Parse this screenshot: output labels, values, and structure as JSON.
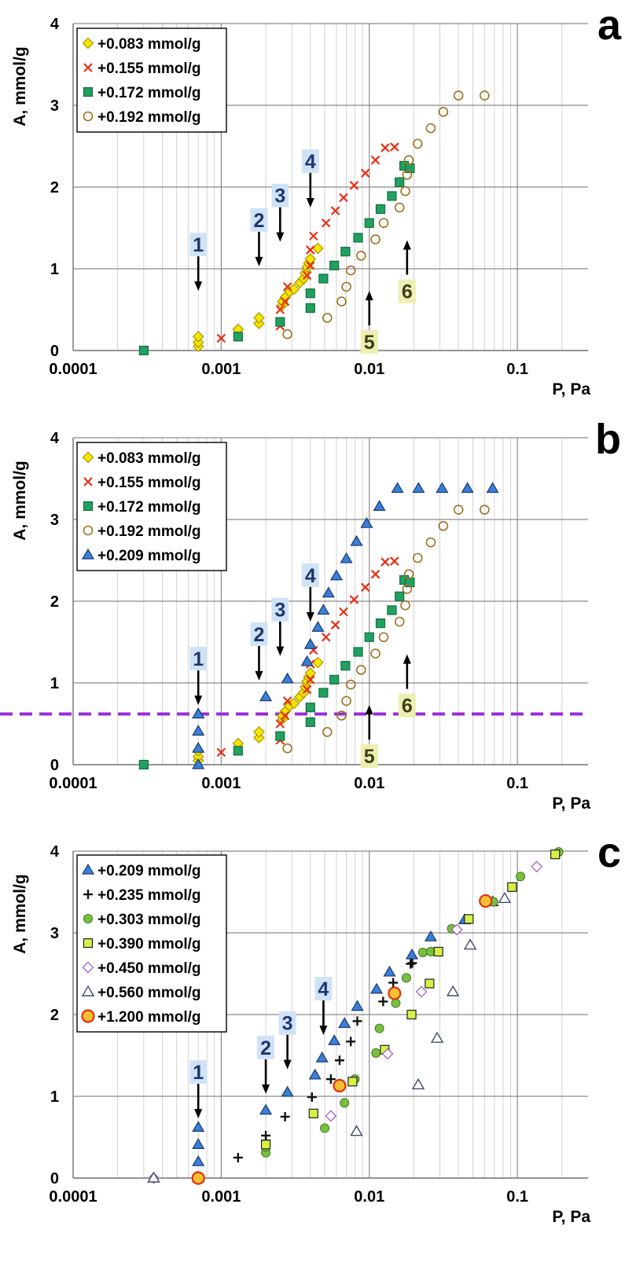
{
  "chart_data": [
    {
      "type": "scatter",
      "panel_label": "a",
      "ylabel": "A, mmol/g",
      "xlabel": "P, Pa",
      "x_scale": "log",
      "xlim": [
        0.0001,
        0.3
      ],
      "ylim": [
        0,
        4
      ],
      "x_ticks": [
        "0.0001",
        "0.001",
        "0.01",
        "0.1"
      ],
      "y_ticks": [
        "0",
        "1",
        "2",
        "3",
        "4"
      ],
      "grid": true,
      "legend_position": "top-left",
      "series": [
        {
          "name": "+0.083 mmol/g",
          "marker": "diamond",
          "color": "#f5e400",
          "edge": "#a89a00",
          "x": [
            0.0007,
            0.0007,
            0.0007,
            0.0013,
            0.0018,
            0.0018,
            0.0026,
            0.0026,
            0.0027,
            0.0029,
            0.0031,
            0.0034,
            0.0036,
            0.0037,
            0.0038,
            0.0039,
            0.004,
            0.0045
          ],
          "y": [
            0.05,
            0.1,
            0.17,
            0.26,
            0.33,
            0.4,
            0.56,
            0.6,
            0.65,
            0.72,
            0.75,
            0.83,
            0.88,
            0.95,
            1.02,
            1.07,
            1.12,
            1.25
          ]
        },
        {
          "name": "+0.155 mmol/g",
          "marker": "x",
          "color": "#e83018",
          "edge": "#e83018",
          "x": [
            0.0003,
            0.001,
            0.0025,
            0.0025,
            0.0027,
            0.0028,
            0.0038,
            0.004,
            0.004,
            0.0042,
            0.0051,
            0.0059,
            0.0067,
            0.0079,
            0.0094,
            0.011,
            0.0128,
            0.0148
          ],
          "y": [
            0,
            0.15,
            0.3,
            0.5,
            0.6,
            0.78,
            0.92,
            1.04,
            1.23,
            1.4,
            1.56,
            1.71,
            1.87,
            2.02,
            2.17,
            2.33,
            2.48,
            2.49
          ]
        },
        {
          "name": "+0.172 mmol/g",
          "marker": "square",
          "color": "#22a060",
          "edge": "#107040",
          "x": [
            0.0003,
            0.0013,
            0.0025,
            0.004,
            0.004,
            0.0049,
            0.0058,
            0.0069,
            0.0084,
            0.01,
            0.0119,
            0.0142,
            0.016,
            0.0172,
            0.0188
          ],
          "y": [
            0,
            0.17,
            0.35,
            0.52,
            0.7,
            0.88,
            1.04,
            1.21,
            1.38,
            1.56,
            1.73,
            1.89,
            2.06,
            2.26,
            2.23
          ]
        },
        {
          "name": "+0.192 mmol/g",
          "marker": "circle",
          "color": "none",
          "edge": "#a07020",
          "x": [
            0.0028,
            0.0052,
            0.0065,
            0.007,
            0.0075,
            0.0088,
            0.011,
            0.0125,
            0.016,
            0.0175,
            0.018,
            0.0185,
            0.0212,
            0.026,
            0.0316,
            0.04,
            0.06
          ],
          "y": [
            0.2,
            0.4,
            0.6,
            0.78,
            0.98,
            1.16,
            1.36,
            1.56,
            1.75,
            1.95,
            2.15,
            2.33,
            2.53,
            2.72,
            2.92,
            3.12,
            3.12
          ]
        }
      ],
      "annotations": [
        {
          "label": "1",
          "x": 0.0007,
          "y_arrow_tip": 0.73,
          "dir": "down",
          "style": "blue"
        },
        {
          "label": "2",
          "x": 0.0018,
          "y_arrow_tip": 1.03,
          "dir": "down",
          "style": "blue"
        },
        {
          "label": "3",
          "x": 0.0025,
          "y_arrow_tip": 1.33,
          "dir": "down",
          "style": "blue"
        },
        {
          "label": "4",
          "x": 0.004,
          "y_arrow_tip": 1.75,
          "dir": "down",
          "style": "blue"
        },
        {
          "label": "5",
          "x": 0.01,
          "y_arrow_tip": 0.73,
          "dir": "up",
          "style": "yellow"
        },
        {
          "label": "6",
          "x": 0.018,
          "y_arrow_tip": 1.35,
          "dir": "up",
          "style": "yellow"
        }
      ]
    },
    {
      "type": "scatter",
      "panel_label": "b",
      "ylabel": "A, mmol/g",
      "xlabel": "P, Pa",
      "x_scale": "log",
      "xlim": [
        0.0001,
        0.3
      ],
      "ylim": [
        0,
        4
      ],
      "x_ticks": [
        "0.0001",
        "0.001",
        "0.01",
        "0.1"
      ],
      "y_ticks": [
        "0",
        "1",
        "2",
        "3",
        "4"
      ],
      "grid": true,
      "legend_position": "top-left",
      "reference_line": {
        "y": 0.62,
        "color": "#9a2bd8",
        "style": "dashed"
      },
      "series": [
        {
          "name": "+0.083 mmol/g",
          "marker": "diamond",
          "color": "#f5e400",
          "edge": "#a89a00",
          "x": [
            0.0007,
            0.0007,
            0.0007,
            0.0013,
            0.0018,
            0.0018,
            0.0026,
            0.0026,
            0.0027,
            0.0029,
            0.0031,
            0.0034,
            0.0036,
            0.0037,
            0.0038,
            0.0039,
            0.004,
            0.0045
          ],
          "y": [
            0.05,
            0.1,
            0.17,
            0.26,
            0.33,
            0.4,
            0.56,
            0.6,
            0.65,
            0.72,
            0.75,
            0.83,
            0.88,
            0.95,
            1.02,
            1.07,
            1.12,
            1.25
          ]
        },
        {
          "name": "+0.155 mmol/g",
          "marker": "x",
          "color": "#e83018",
          "edge": "#e83018",
          "x": [
            0.0003,
            0.001,
            0.0025,
            0.0025,
            0.0027,
            0.0028,
            0.0038,
            0.004,
            0.004,
            0.0042,
            0.0051,
            0.0059,
            0.0067,
            0.0079,
            0.0094,
            0.011,
            0.0128,
            0.0148
          ],
          "y": [
            0,
            0.15,
            0.3,
            0.5,
            0.6,
            0.78,
            0.92,
            1.04,
            1.23,
            1.4,
            1.56,
            1.71,
            1.87,
            2.02,
            2.17,
            2.33,
            2.48,
            2.49
          ]
        },
        {
          "name": "+0.172 mmol/g",
          "marker": "square",
          "color": "#22a060",
          "edge": "#107040",
          "x": [
            0.0003,
            0.0013,
            0.0025,
            0.004,
            0.004,
            0.0049,
            0.0058,
            0.0069,
            0.0084,
            0.01,
            0.0119,
            0.0142,
            0.016,
            0.0172,
            0.0188
          ],
          "y": [
            0,
            0.17,
            0.35,
            0.52,
            0.7,
            0.88,
            1.04,
            1.21,
            1.38,
            1.56,
            1.73,
            1.89,
            2.06,
            2.26,
            2.23
          ]
        },
        {
          "name": "+0.192 mmol/g",
          "marker": "circle",
          "color": "none",
          "edge": "#a07020",
          "x": [
            0.0028,
            0.0052,
            0.0065,
            0.007,
            0.0075,
            0.0088,
            0.011,
            0.0125,
            0.016,
            0.0175,
            0.018,
            0.0185,
            0.0212,
            0.026,
            0.0316,
            0.04,
            0.06
          ],
          "y": [
            0.2,
            0.4,
            0.6,
            0.78,
            0.98,
            1.16,
            1.36,
            1.56,
            1.75,
            1.95,
            2.15,
            2.33,
            2.53,
            2.72,
            2.92,
            3.12,
            3.12
          ]
        },
        {
          "name": "+0.209 mmol/g",
          "marker": "triangle",
          "color": "#3a7fd8",
          "edge": "#1a3a70",
          "x": [
            0.0007,
            0.0007,
            0.0007,
            0.0007,
            0.0007,
            0.002,
            0.0028,
            0.0038,
            0.004,
            0.0045,
            0.0049,
            0.0053,
            0.006,
            0.007,
            0.0082,
            0.0096,
            0.0117,
            0.0155,
            0.0215,
            0.031,
            0.046,
            0.068
          ],
          "y": [
            0,
            0.2,
            0.41,
            0.62,
            0.62,
            0.83,
            1.05,
            1.26,
            1.47,
            1.68,
            1.89,
            2.1,
            2.31,
            2.52,
            2.73,
            2.95,
            3.16,
            3.38,
            3.38,
            3.38,
            3.38,
            3.38
          ]
        }
      ],
      "annotations": [
        {
          "label": "1",
          "x": 0.0007,
          "y_arrow_tip": 0.73,
          "dir": "down",
          "style": "blue"
        },
        {
          "label": "2",
          "x": 0.0018,
          "y_arrow_tip": 1.03,
          "dir": "down",
          "style": "blue"
        },
        {
          "label": "3",
          "x": 0.0025,
          "y_arrow_tip": 1.33,
          "dir": "down",
          "style": "blue"
        },
        {
          "label": "4",
          "x": 0.004,
          "y_arrow_tip": 1.75,
          "dir": "down",
          "style": "blue"
        },
        {
          "label": "5",
          "x": 0.01,
          "y_arrow_tip": 0.73,
          "dir": "up",
          "style": "yellow"
        },
        {
          "label": "6",
          "x": 0.018,
          "y_arrow_tip": 1.35,
          "dir": "up",
          "style": "yellow"
        }
      ]
    },
    {
      "type": "scatter",
      "panel_label": "c",
      "ylabel": "A, mmol/g",
      "xlabel": "P, Pa",
      "x_scale": "log",
      "xlim": [
        0.0001,
        0.3
      ],
      "ylim": [
        0,
        4
      ],
      "x_ticks": [
        "0.0001",
        "0.001",
        "0.01",
        "0.1"
      ],
      "y_ticks": [
        "0",
        "1",
        "2",
        "3",
        "4"
      ],
      "grid": true,
      "legend_position": "top-left",
      "series": [
        {
          "name": "+0.209 mmol/g",
          "marker": "triangle",
          "color": "#3a7fd8",
          "edge": "#1a3a70",
          "x": [
            0.0007,
            0.0007,
            0.0007,
            0.0007,
            0.002,
            0.0028,
            0.0043,
            0.0048,
            0.0058,
            0.0068,
            0.0083,
            0.0112,
            0.0137,
            0.0194,
            0.026,
            0.044,
            0.068
          ],
          "y": [
            0,
            0.2,
            0.41,
            0.62,
            0.83,
            1.05,
            1.26,
            1.47,
            1.68,
            1.89,
            2.1,
            2.31,
            2.52,
            2.73,
            2.95,
            3.16,
            3.38
          ]
        },
        {
          "name": "+0.235 mmol/g",
          "marker": "plus",
          "color": "#111111",
          "edge": "#111111",
          "x": [
            0.0013,
            0.002,
            0.002,
            0.0027,
            0.0041,
            0.0055,
            0.0063,
            0.0075,
            0.0083,
            0.0124,
            0.0145,
            0.019,
            0.0195
          ],
          "y": [
            0.25,
            0.46,
            0.52,
            0.75,
            0.99,
            1.21,
            1.44,
            1.67,
            1.92,
            2.16,
            2.39,
            2.62,
            2.63
          ]
        },
        {
          "name": "+0.303 mmol/g",
          "marker": "circle-filled",
          "color": "#7abf40",
          "edge": "#3e7a20",
          "x": [
            0.002,
            0.002,
            0.005,
            0.0068,
            0.008,
            0.0111,
            0.0117,
            0.0151,
            0.0178,
            0.023,
            0.026,
            0.036,
            0.069,
            0.105,
            0.19
          ],
          "y": [
            0.31,
            0.38,
            0.61,
            0.92,
            1.21,
            1.53,
            1.83,
            2.14,
            2.45,
            2.76,
            2.77,
            3.05,
            3.38,
            3.69,
            3.99
          ]
        },
        {
          "name": "+0.390 mmol/g",
          "marker": "square",
          "color": "#d6f048",
          "edge": "#222222",
          "x": [
            0.002,
            0.0042,
            0.0077,
            0.0127,
            0.0193,
            0.0255,
            0.0293,
            0.047,
            0.092,
            0.18
          ],
          "y": [
            0.41,
            0.79,
            1.18,
            1.57,
            2.0,
            2.38,
            2.77,
            3.17,
            3.56,
            3.96
          ]
        },
        {
          "name": "+0.450 mmol/g",
          "marker": "diamond",
          "color": "#ffffff",
          "edge": "#a050c0",
          "x": [
            0.00035,
            0.0055,
            0.0133,
            0.0225,
            0.039,
            0.135
          ],
          "y": [
            0,
            0.76,
            1.52,
            2.28,
            3.04,
            3.81
          ]
        },
        {
          "name": "+0.560 mmol/g",
          "marker": "triangle-open",
          "color": "#ffffff",
          "edge": "#404a70",
          "x": [
            0.00035,
            0.0082,
            0.0214,
            0.0287,
            0.0367,
            0.048,
            0.082
          ],
          "y": [
            0,
            0.57,
            1.14,
            1.71,
            2.28,
            2.85,
            3.42
          ]
        },
        {
          "name": "+1.200 mmol/g",
          "marker": "circle-big",
          "color": "#f5c030",
          "edge": "#e03010",
          "x": [
            0.0007,
            0.0063,
            0.0148,
            0.061
          ],
          "y": [
            0,
            1.13,
            2.26,
            3.39
          ]
        }
      ],
      "annotations": [
        {
          "label": "1",
          "x": 0.0007,
          "y_arrow_tip": 0.73,
          "dir": "down",
          "style": "blue"
        },
        {
          "label": "2",
          "x": 0.002,
          "y_arrow_tip": 1.03,
          "dir": "down",
          "style": "blue"
        },
        {
          "label": "3",
          "x": 0.0028,
          "y_arrow_tip": 1.33,
          "dir": "down",
          "style": "blue"
        },
        {
          "label": "4",
          "x": 0.0049,
          "y_arrow_tip": 1.75,
          "dir": "down",
          "style": "blue"
        }
      ]
    }
  ]
}
